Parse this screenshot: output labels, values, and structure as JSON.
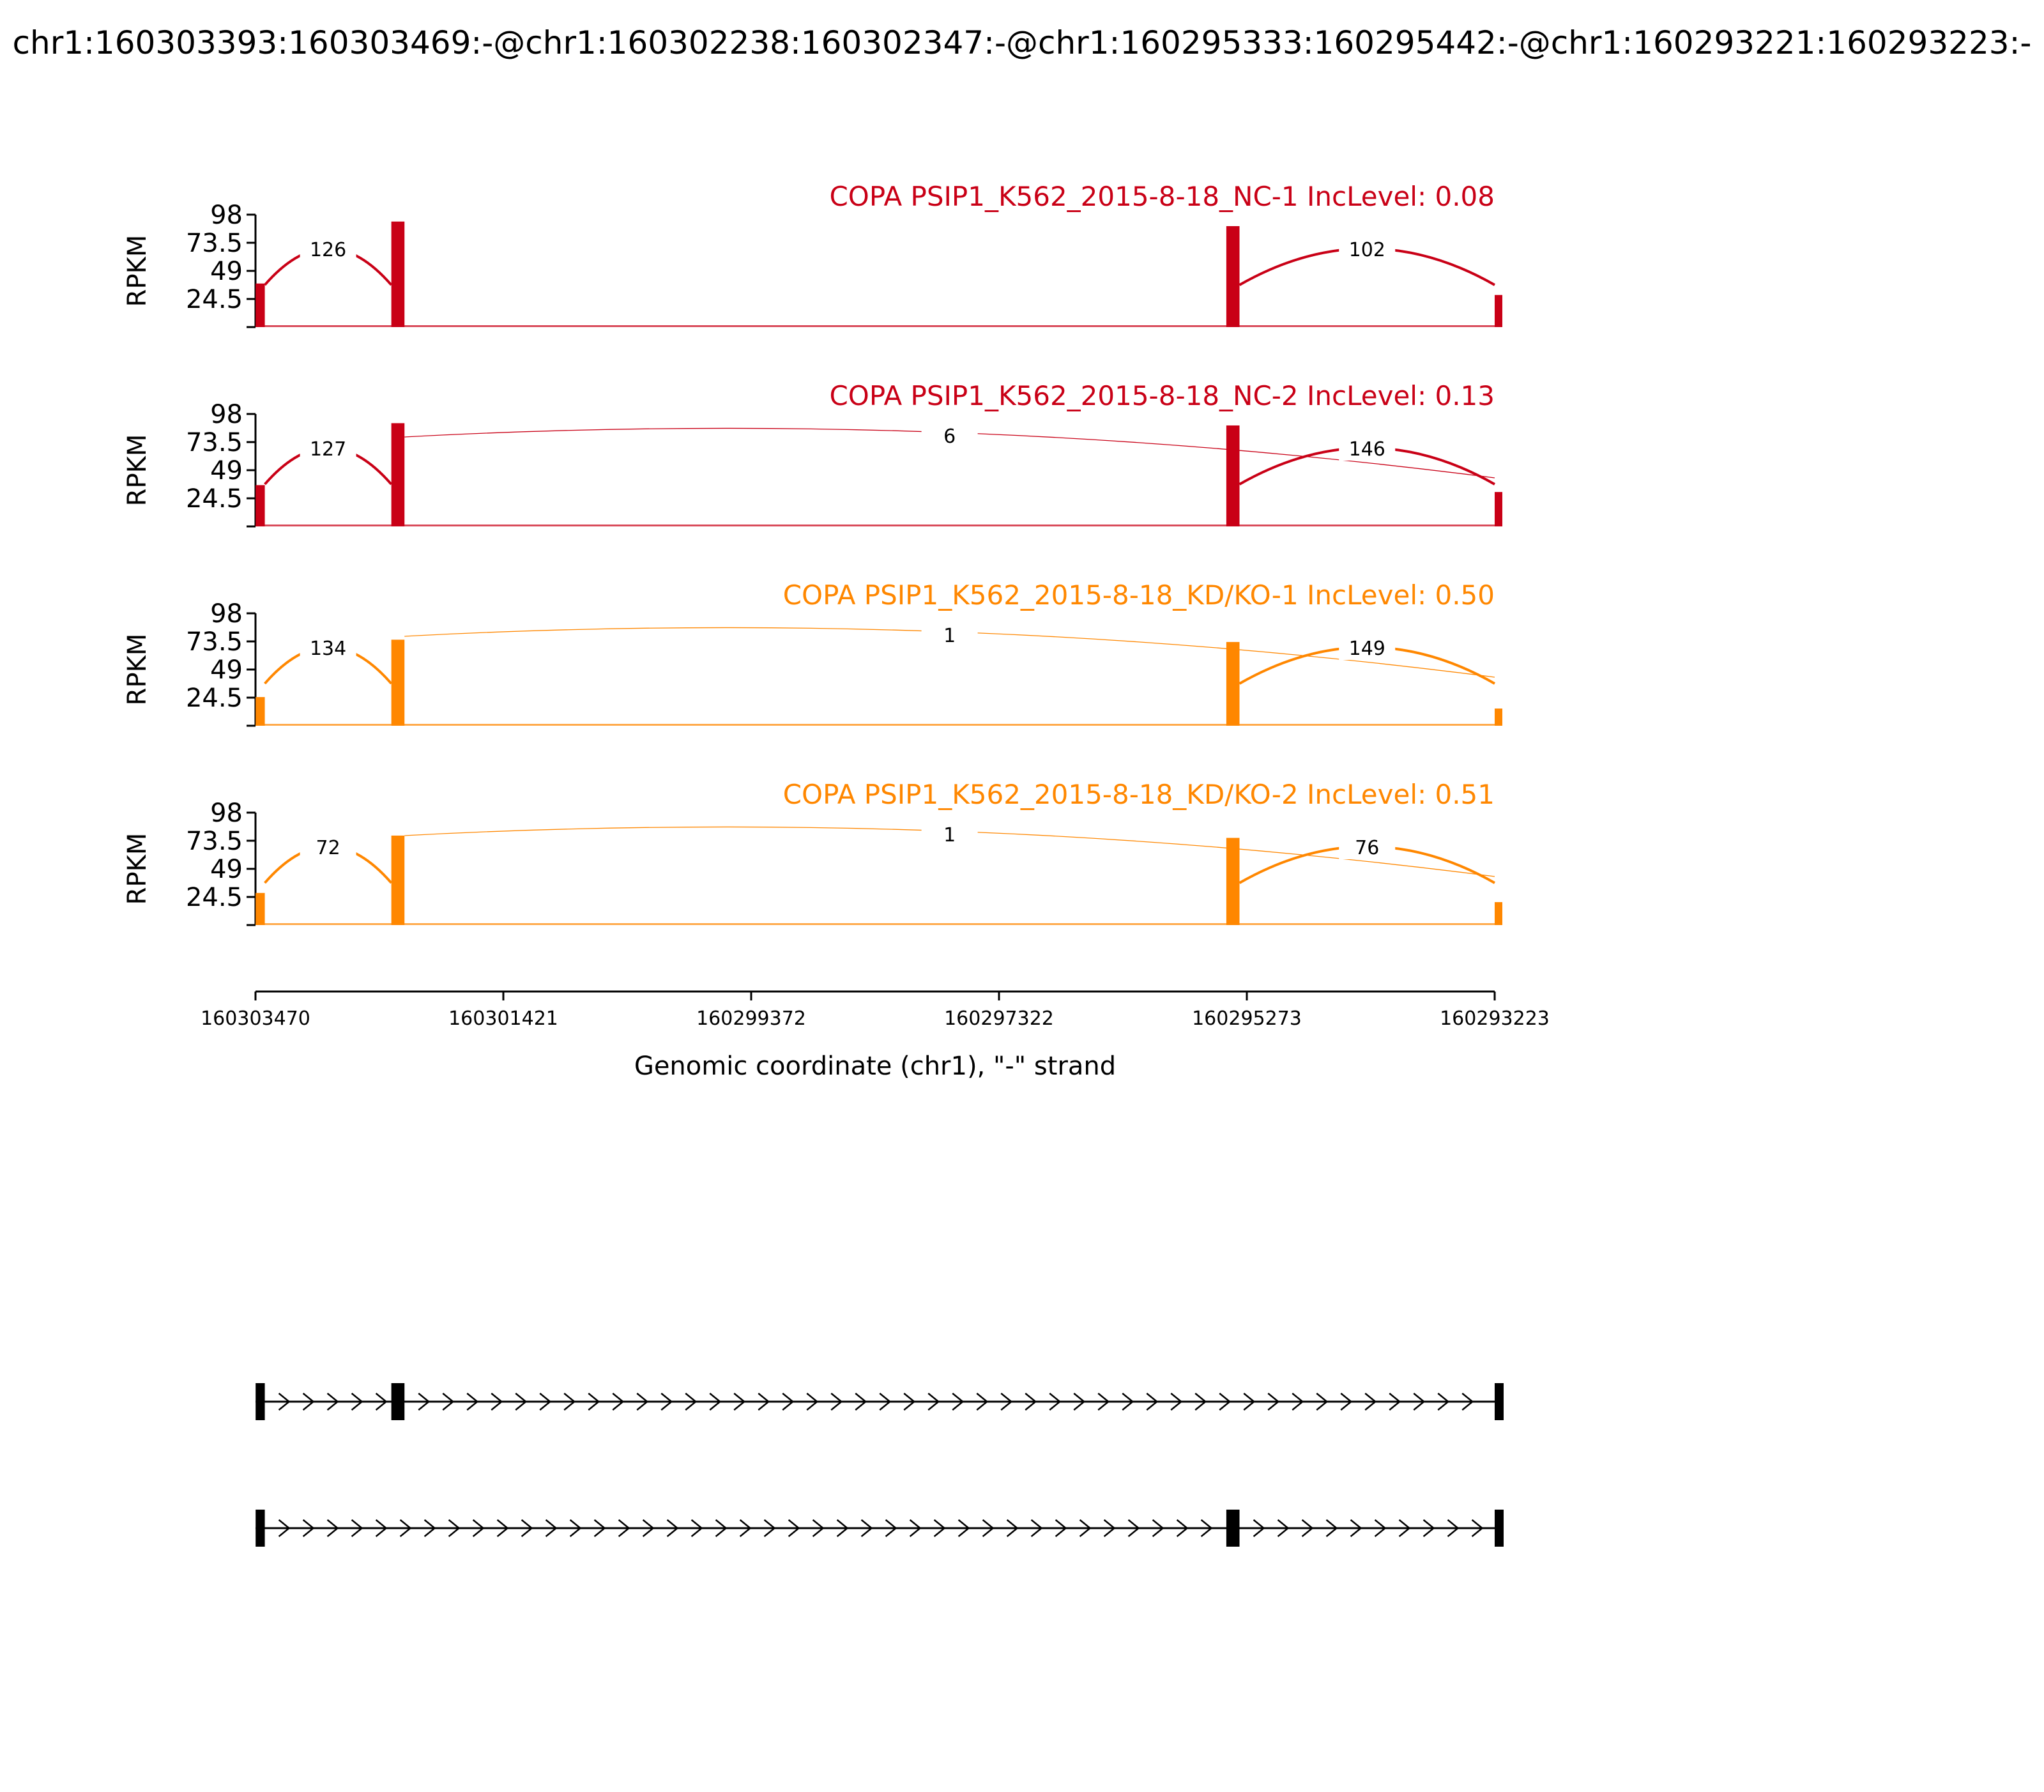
{
  "figure": {
    "title": "chr1:160303393:160303469:-@chr1:160302238:160302347:-@chr1:160295333:160295442:-@chr1:160293221:160293223:-"
  },
  "colors": {
    "nc": "#c90016",
    "kd": "#ff8700",
    "axis": "#000000",
    "gene": "#000000"
  },
  "chart_data": {
    "type": "area",
    "ylabel": "RPKM",
    "ylim": [
      0,
      98
    ],
    "yticks": [
      "24.5",
      "49",
      "73.5",
      "98"
    ],
    "xlabel": "Genomic coordinate (chr1), \"-\" strand",
    "xlim": [
      160303470,
      160293223
    ],
    "xticks": [
      "160303470",
      "160301421",
      "160299372",
      "160297322",
      "160295273",
      "160293223"
    ],
    "exons": [
      {
        "name": "exon1",
        "start": 160303469,
        "end": 160303393
      },
      {
        "name": "exon2",
        "start": 160302347,
        "end": 160302238
      },
      {
        "name": "exon3",
        "start": 160295442,
        "end": 160295333
      },
      {
        "name": "exon4",
        "start": 160293223,
        "end": 160293221
      }
    ],
    "series": [
      {
        "name": "COPA PSIP1_K562_2015-8-18_NC-1 IncLevel: 0.08",
        "group": "nc",
        "exon_peaks": [
          38,
          92,
          88,
          28
        ],
        "junctions": [
          {
            "from": "exon1",
            "to": "exon2",
            "count": "126"
          },
          {
            "from": "exon3",
            "to": "exon4",
            "count": "102"
          }
        ]
      },
      {
        "name": "COPA PSIP1_K562_2015-8-18_NC-2 IncLevel: 0.13",
        "group": "nc",
        "exon_peaks": [
          36,
          90,
          88,
          30
        ],
        "junctions": [
          {
            "from": "exon1",
            "to": "exon2",
            "count": "127"
          },
          {
            "from": "exon2",
            "to": "exon4",
            "count": "6"
          },
          {
            "from": "exon3",
            "to": "exon4",
            "count": "146"
          }
        ]
      },
      {
        "name": "COPA PSIP1_K562_2015-8-18_KD/KO-1 IncLevel: 0.50",
        "group": "kd",
        "exon_peaks": [
          25,
          75,
          73,
          15
        ],
        "junctions": [
          {
            "from": "exon1",
            "to": "exon2",
            "count": "134"
          },
          {
            "from": "exon2",
            "to": "exon4",
            "count": "1"
          },
          {
            "from": "exon3",
            "to": "exon4",
            "count": "149"
          }
        ]
      },
      {
        "name": "COPA PSIP1_K562_2015-8-18_KD/KO-2 IncLevel: 0.51",
        "group": "kd",
        "exon_peaks": [
          28,
          78,
          76,
          20
        ],
        "junctions": [
          {
            "from": "exon1",
            "to": "exon2",
            "count": "72"
          },
          {
            "from": "exon2",
            "to": "exon4",
            "count": "1"
          },
          {
            "from": "exon3",
            "to": "exon4",
            "count": "76"
          }
        ]
      }
    ],
    "isoforms": [
      {
        "exons": [
          "exon1",
          "exon2",
          "exon4"
        ]
      },
      {
        "exons": [
          "exon1",
          "exon3",
          "exon4"
        ]
      }
    ]
  }
}
